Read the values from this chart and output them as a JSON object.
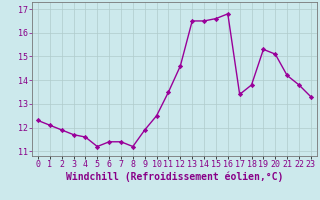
{
  "x": [
    0,
    1,
    2,
    3,
    4,
    5,
    6,
    7,
    8,
    9,
    10,
    11,
    12,
    13,
    14,
    15,
    16,
    17,
    18,
    19,
    20,
    21,
    22,
    23
  ],
  "y": [
    12.3,
    12.1,
    11.9,
    11.7,
    11.6,
    11.2,
    11.4,
    11.4,
    11.2,
    11.9,
    12.5,
    13.5,
    14.6,
    16.5,
    16.5,
    16.6,
    16.8,
    13.4,
    13.8,
    15.3,
    15.1,
    14.2,
    13.8,
    13.3
  ],
  "line_color": "#990099",
  "marker": "D",
  "marker_size": 2.2,
  "line_width": 1.0,
  "xlabel": "Windchill (Refroidissement éolien,°C)",
  "xlabel_fontsize": 7.0,
  "ylim": [
    10.8,
    17.3
  ],
  "xlim": [
    -0.5,
    23.5
  ],
  "yticks": [
    11,
    12,
    13,
    14,
    15,
    16,
    17
  ],
  "xtick_labels": [
    "0",
    "1",
    "2",
    "3",
    "4",
    "5",
    "6",
    "7",
    "8",
    "9",
    "10",
    "11",
    "12",
    "13",
    "14",
    "15",
    "16",
    "17",
    "18",
    "19",
    "20",
    "21",
    "22",
    "23"
  ],
  "bg_color": "#cce9ec",
  "grid_color": "#b0cccc",
  "tick_fontsize": 6.0,
  "label_color": "#880088"
}
